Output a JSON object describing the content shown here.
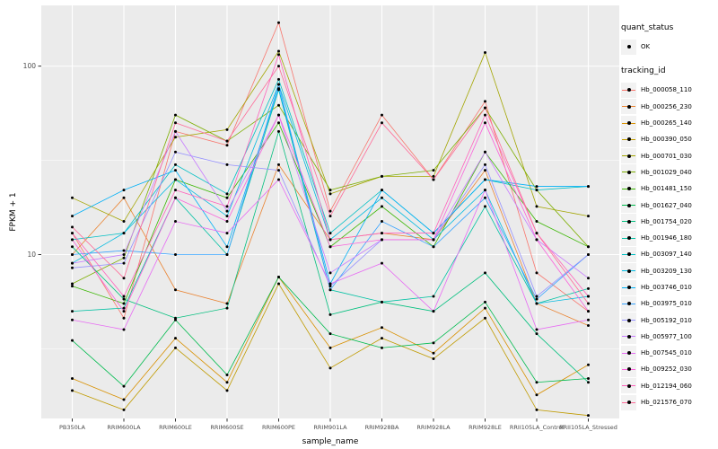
{
  "chart_data": {
    "type": "line",
    "title": "",
    "xlabel": "sample_name",
    "ylabel": "FPKM + 1",
    "y_scale": "log10",
    "y_ticks": [
      10,
      100
    ],
    "ylim": [
      1.35,
      210
    ],
    "panel_bg": "#EBEBEB",
    "grid_color": "#FFFFFF",
    "point_color": "#000000",
    "axis_text_color": "#4D4D4D",
    "legend": {
      "quant_status_title": "quant_status",
      "ok_label": "OK",
      "tracking_title": "tracking_id"
    },
    "categories": [
      "PB350LA",
      "RRIM600LA",
      "RRIM600LE",
      "RRIM600SE",
      "RRIM600PE",
      "RRIM901LA",
      "RRIM928BA",
      "RRIM928LA",
      "RRIM928LE",
      "RRII105LA_Control",
      "RRII105LA_Stressed"
    ],
    "series": [
      {
        "name": "Hb_000058_110",
        "color": "#F8766D",
        "values": [
          13,
          4.6,
          45,
          38,
          170,
          17,
          55,
          25,
          65,
          8,
          5
        ]
      },
      {
        "name": "Hb_000256_230",
        "color": "#EA8331",
        "values": [
          10,
          20,
          6.5,
          5.5,
          30,
          12,
          13,
          12,
          28,
          5.5,
          4.2
        ]
      },
      {
        "name": "Hb_000265_140",
        "color": "#D89000",
        "values": [
          2.2,
          1.7,
          3.6,
          2.1,
          7.6,
          3.2,
          4.1,
          3.0,
          5.2,
          1.8,
          2.6
        ]
      },
      {
        "name": "Hb_000390_050",
        "color": "#C09B00",
        "values": [
          1.9,
          1.5,
          3.2,
          1.9,
          7.0,
          2.5,
          3.6,
          2.8,
          4.6,
          1.5,
          1.4
        ]
      },
      {
        "name": "Hb_000701_030",
        "color": "#A3A500",
        "values": [
          20,
          15,
          42,
          46,
          120,
          21,
          26,
          26,
          118,
          18,
          16
        ]
      },
      {
        "name": "Hb_001029_040",
        "color": "#7CAE00",
        "values": [
          7,
          9.6,
          55,
          40,
          62,
          22,
          26,
          28,
          60,
          22,
          11
        ]
      },
      {
        "name": "Hb_001481_150",
        "color": "#39B600",
        "values": [
          6.8,
          5.5,
          25,
          20,
          50,
          11,
          18,
          11,
          35,
          15,
          11
        ]
      },
      {
        "name": "Hb_001627_040",
        "color": "#00BB4E",
        "values": [
          3.5,
          2.0,
          4.5,
          2.3,
          7.6,
          3.8,
          3.2,
          3.4,
          5.6,
          2.1,
          2.2
        ]
      },
      {
        "name": "Hb_001754_020",
        "color": "#00BF7D",
        "values": [
          11,
          5.8,
          4.6,
          5.2,
          45,
          4.8,
          5.6,
          5.0,
          8.0,
          3.8,
          2.1
        ]
      },
      {
        "name": "Hb_001946_180",
        "color": "#00C1A3",
        "values": [
          5.0,
          5.2,
          20,
          10,
          75,
          6.5,
          5.6,
          6.0,
          18,
          5.5,
          6.6
        ]
      },
      {
        "name": "Hb_003097_140",
        "color": "#00BFC4",
        "values": [
          12,
          13,
          30,
          21,
          85,
          13,
          22,
          13,
          25,
          22,
          23
        ]
      },
      {
        "name": "Hb_003209_130",
        "color": "#00BAE0",
        "values": [
          9,
          13,
          25,
          16,
          80,
          12,
          20,
          12,
          22,
          5.5,
          6.0
        ]
      },
      {
        "name": "Hb_003746_010",
        "color": "#00B0F6",
        "values": [
          16,
          22,
          28,
          11,
          76,
          7,
          22,
          13,
          25,
          23,
          23
        ]
      },
      {
        "name": "Hb_003975_010",
        "color": "#35A2FF",
        "values": [
          10,
          10.5,
          10,
          10,
          80,
          6.5,
          15,
          11,
          20,
          5.8,
          10
        ]
      },
      {
        "name": "Hb_005192_010",
        "color": "#9590FF",
        "values": [
          8.5,
          9,
          35,
          30,
          28,
          6.8,
          12,
          12,
          30,
          6,
          10
        ]
      },
      {
        "name": "Hb_005977_100",
        "color": "#C77CFF",
        "values": [
          9,
          10,
          45,
          17,
          55,
          8,
          12,
          12,
          35,
          12,
          7.5
        ]
      },
      {
        "name": "Hb_007545_010",
        "color": "#E76BF3",
        "values": [
          4.5,
          4,
          15,
          13,
          25,
          7,
          9,
          5,
          22,
          4,
          4.5
        ]
      },
      {
        "name": "Hb_009252_030",
        "color": "#FA62DB",
        "values": [
          12,
          5,
          20,
          15,
          55,
          11,
          12,
          12,
          50,
          12,
          5
        ]
      },
      {
        "name": "Hb_012194_060",
        "color": "#FF62BC",
        "values": [
          13,
          6,
          22,
          18,
          115,
          12,
          13,
          13,
          55,
          13,
          6
        ]
      },
      {
        "name": "Hb_021576_070",
        "color": "#FF6A98",
        "values": [
          14,
          7.5,
          50,
          40,
          100,
          16,
          50,
          25,
          60,
          13,
          5.5
        ]
      }
    ]
  }
}
